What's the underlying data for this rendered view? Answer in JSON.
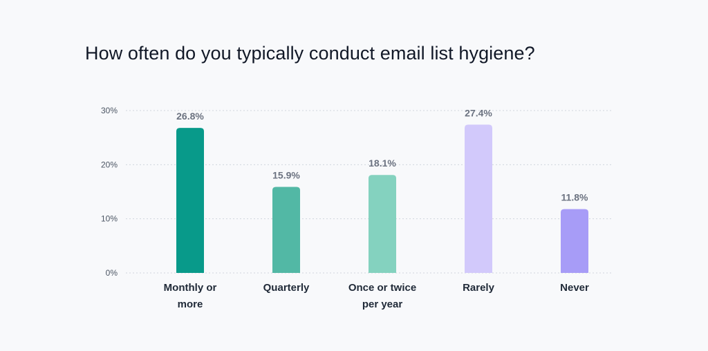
{
  "chart_data": {
    "type": "bar",
    "title": "How often do you typically conduct email list hygiene?",
    "categories": [
      "Monthly or more",
      "Quarterly",
      "Once or twice per year",
      "Rarely",
      "Never"
    ],
    "category_lines": [
      [
        "Monthly or",
        "more"
      ],
      [
        "Quarterly"
      ],
      [
        "Once or twice",
        "per year"
      ],
      [
        "Rarely"
      ],
      [
        "Never"
      ]
    ],
    "values": [
      26.8,
      15.9,
      18.1,
      27.4,
      11.8
    ],
    "value_labels": [
      "26.8%",
      "15.9%",
      "18.1%",
      "27.4%",
      "11.8%"
    ],
    "bar_colors": [
      "#089a8a",
      "#52b8a5",
      "#84d2bf",
      "#d2c9fb",
      "#a79cf7"
    ],
    "ylim": [
      0,
      30
    ],
    "yticks": [
      0,
      10,
      20,
      30
    ],
    "ytick_labels": [
      "0%",
      "10%",
      "20%",
      "30%"
    ],
    "grid": true,
    "xlabel": "",
    "ylabel": ""
  }
}
